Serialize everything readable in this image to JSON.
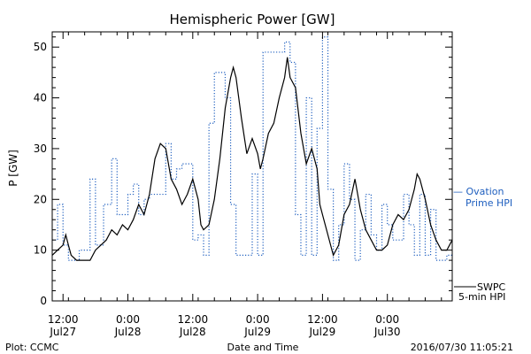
{
  "chart_data": {
    "type": "line",
    "title": "Hemispheric Power [GW]",
    "ylabel": "P [GW]",
    "xlabel": "Date and Time",
    "ylim": [
      0,
      53
    ],
    "xlim": [
      "2016-07-27T10:00",
      "2016-07-30T12:00"
    ],
    "yticks": [
      0,
      10,
      20,
      30,
      40,
      50
    ],
    "xticks": [
      {
        "time": "2016-07-27T12:00",
        "label1": "12:00",
        "label2": "Jul27"
      },
      {
        "time": "2016-07-28T00:00",
        "label1": "0:00",
        "label2": "Jul28"
      },
      {
        "time": "2016-07-28T12:00",
        "label1": "12:00",
        "label2": "Jul28"
      },
      {
        "time": "2016-07-29T00:00",
        "label1": "0:00",
        "label2": "Jul29"
      },
      {
        "time": "2016-07-29T12:00",
        "label1": "12:00",
        "label2": "Jul29"
      },
      {
        "time": "2016-07-30T00:00",
        "label1": "0:00",
        "label2": "Jul30"
      }
    ],
    "legend": [
      {
        "line1": "— Ovation",
        "line2": "Prime HPI",
        "color": "#1f5fbf",
        "style": "dotted"
      },
      {
        "line1": "SWPC",
        "line2": "5-min HPI",
        "color": "#000000",
        "style": "solid"
      }
    ],
    "series": [
      {
        "name": "Ovation Prime HPI",
        "color": "#1f5fbf",
        "style": "dotted-step",
        "points": [
          [
            "2016-07-27T10:00",
            12
          ],
          [
            "2016-07-27T11:00",
            19
          ],
          [
            "2016-07-27T12:00",
            11
          ],
          [
            "2016-07-27T13:00",
            8
          ],
          [
            "2016-07-27T15:00",
            10
          ],
          [
            "2016-07-27T17:00",
            24
          ],
          [
            "2016-07-27T18:00",
            11
          ],
          [
            "2016-07-27T19:30",
            19
          ],
          [
            "2016-07-27T21:00",
            28
          ],
          [
            "2016-07-27T22:00",
            17
          ],
          [
            "2016-07-28T00:00",
            21
          ],
          [
            "2016-07-28T01:00",
            23
          ],
          [
            "2016-07-28T02:00",
            17
          ],
          [
            "2016-07-28T03:00",
            20
          ],
          [
            "2016-07-28T04:00",
            21
          ],
          [
            "2016-07-28T07:00",
            31
          ],
          [
            "2016-07-28T08:00",
            24
          ],
          [
            "2016-07-28T09:00",
            26
          ],
          [
            "2016-07-28T10:00",
            27
          ],
          [
            "2016-07-28T12:00",
            12
          ],
          [
            "2016-07-28T13:00",
            13
          ],
          [
            "2016-07-28T14:00",
            9
          ],
          [
            "2016-07-28T15:00",
            35
          ],
          [
            "2016-07-28T16:00",
            45
          ],
          [
            "2016-07-28T18:00",
            40
          ],
          [
            "2016-07-28T19:00",
            19
          ],
          [
            "2016-07-28T20:00",
            9
          ],
          [
            "2016-07-28T22:00",
            9
          ],
          [
            "2016-07-28T23:00",
            25
          ],
          [
            "2016-07-29T00:00",
            9
          ],
          [
            "2016-07-29T01:00",
            49
          ],
          [
            "2016-07-29T04:00",
            49
          ],
          [
            "2016-07-29T05:00",
            51
          ],
          [
            "2016-07-29T06:00",
            47
          ],
          [
            "2016-07-29T07:00",
            17
          ],
          [
            "2016-07-29T08:00",
            9
          ],
          [
            "2016-07-29T09:00",
            40
          ],
          [
            "2016-07-29T10:00",
            9
          ],
          [
            "2016-07-29T11:00",
            34
          ],
          [
            "2016-07-29T12:00",
            52
          ],
          [
            "2016-07-29T13:00",
            22
          ],
          [
            "2016-07-29T14:00",
            8
          ],
          [
            "2016-07-29T15:00",
            15
          ],
          [
            "2016-07-29T16:00",
            27
          ],
          [
            "2016-07-29T17:00",
            20
          ],
          [
            "2016-07-29T18:00",
            8
          ],
          [
            "2016-07-29T19:00",
            14
          ],
          [
            "2016-07-29T20:00",
            21
          ],
          [
            "2016-07-29T21:00",
            13
          ],
          [
            "2016-07-29T22:00",
            10
          ],
          [
            "2016-07-29T23:00",
            19
          ],
          [
            "2016-07-30T00:00",
            15
          ],
          [
            "2016-07-30T01:00",
            12
          ],
          [
            "2016-07-30T03:00",
            21
          ],
          [
            "2016-07-30T04:00",
            15
          ],
          [
            "2016-07-30T05:00",
            9
          ],
          [
            "2016-07-30T06:00",
            21
          ],
          [
            "2016-07-30T07:00",
            9
          ],
          [
            "2016-07-30T08:00",
            18
          ],
          [
            "2016-07-30T09:00",
            8
          ],
          [
            "2016-07-30T11:00",
            9
          ]
        ]
      },
      {
        "name": "SWPC 5-min HPI",
        "color": "#000000",
        "style": "solid",
        "points": [
          [
            "2016-07-27T10:00",
            9
          ],
          [
            "2016-07-27T11:00",
            10
          ],
          [
            "2016-07-27T12:00",
            11
          ],
          [
            "2016-07-27T12:30",
            13
          ],
          [
            "2016-07-27T13:00",
            11
          ],
          [
            "2016-07-27T13:30",
            9
          ],
          [
            "2016-07-27T14:30",
            8
          ],
          [
            "2016-07-27T17:00",
            8
          ],
          [
            "2016-07-27T18:00",
            10
          ],
          [
            "2016-07-27T19:00",
            11
          ],
          [
            "2016-07-27T20:00",
            12
          ],
          [
            "2016-07-27T21:00",
            14
          ],
          [
            "2016-07-27T22:00",
            13
          ],
          [
            "2016-07-27T23:00",
            15
          ],
          [
            "2016-07-28T00:00",
            14
          ],
          [
            "2016-07-28T01:00",
            16
          ],
          [
            "2016-07-28T02:00",
            19
          ],
          [
            "2016-07-28T03:00",
            17
          ],
          [
            "2016-07-28T04:00",
            21
          ],
          [
            "2016-07-28T05:00",
            28
          ],
          [
            "2016-07-28T06:00",
            31
          ],
          [
            "2016-07-28T07:00",
            30
          ],
          [
            "2016-07-28T08:00",
            24
          ],
          [
            "2016-07-28T09:00",
            22
          ],
          [
            "2016-07-28T10:00",
            19
          ],
          [
            "2016-07-28T11:00",
            21
          ],
          [
            "2016-07-28T12:00",
            24
          ],
          [
            "2016-07-28T13:00",
            20
          ],
          [
            "2016-07-28T13:30",
            15
          ],
          [
            "2016-07-28T14:00",
            14
          ],
          [
            "2016-07-28T15:00",
            15
          ],
          [
            "2016-07-28T16:00",
            20
          ],
          [
            "2016-07-28T17:00",
            28
          ],
          [
            "2016-07-28T18:00",
            38
          ],
          [
            "2016-07-28T19:00",
            44
          ],
          [
            "2016-07-28T19:30",
            46
          ],
          [
            "2016-07-28T20:00",
            44
          ],
          [
            "2016-07-28T21:00",
            36
          ],
          [
            "2016-07-28T22:00",
            29
          ],
          [
            "2016-07-28T23:00",
            32
          ],
          [
            "2016-07-29T00:00",
            29
          ],
          [
            "2016-07-29T00:30",
            26
          ],
          [
            "2016-07-29T01:00",
            28
          ],
          [
            "2016-07-29T02:00",
            33
          ],
          [
            "2016-07-29T03:00",
            35
          ],
          [
            "2016-07-29T04:00",
            40
          ],
          [
            "2016-07-29T05:00",
            44
          ],
          [
            "2016-07-29T05:30",
            48
          ],
          [
            "2016-07-29T06:00",
            44
          ],
          [
            "2016-07-29T07:00",
            42
          ],
          [
            "2016-07-29T08:00",
            33
          ],
          [
            "2016-07-29T09:00",
            27
          ],
          [
            "2016-07-29T10:00",
            30
          ],
          [
            "2016-07-29T11:00",
            26
          ],
          [
            "2016-07-29T11:30",
            19
          ],
          [
            "2016-07-29T12:00",
            17
          ],
          [
            "2016-07-29T13:00",
            13
          ],
          [
            "2016-07-29T14:00",
            9
          ],
          [
            "2016-07-29T15:00",
            11
          ],
          [
            "2016-07-29T16:00",
            17
          ],
          [
            "2016-07-29T17:00",
            19
          ],
          [
            "2016-07-29T18:00",
            24
          ],
          [
            "2016-07-29T19:00",
            18
          ],
          [
            "2016-07-29T20:00",
            14
          ],
          [
            "2016-07-29T21:00",
            12
          ],
          [
            "2016-07-29T22:00",
            10
          ],
          [
            "2016-07-29T23:00",
            10
          ],
          [
            "2016-07-30T00:00",
            11
          ],
          [
            "2016-07-30T01:00",
            15
          ],
          [
            "2016-07-30T02:00",
            17
          ],
          [
            "2016-07-30T03:00",
            16
          ],
          [
            "2016-07-30T04:00",
            18
          ],
          [
            "2016-07-30T05:00",
            22
          ],
          [
            "2016-07-30T05:30",
            25
          ],
          [
            "2016-07-30T06:00",
            24
          ],
          [
            "2016-07-30T07:00",
            20
          ],
          [
            "2016-07-30T08:00",
            15
          ],
          [
            "2016-07-30T09:00",
            12
          ],
          [
            "2016-07-30T10:00",
            10
          ],
          [
            "2016-07-30T11:00",
            10
          ],
          [
            "2016-07-30T12:00",
            12
          ]
        ]
      }
    ]
  },
  "footer": {
    "plot_label": "Plot: CCMC",
    "timestamp": "2016/07/30 11:05:21"
  }
}
